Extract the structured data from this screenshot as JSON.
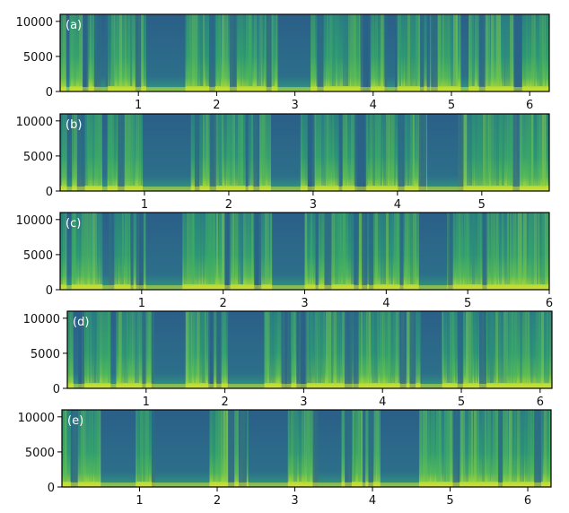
{
  "figure": {
    "description_panels": [
      "(a)",
      "(b)",
      "(c)",
      "(d)",
      "(e)"
    ]
  },
  "chart_data": [
    {
      "type": "heatmap",
      "panel_label": "(a)",
      "xlim": [
        0,
        6.25
      ],
      "ylim": [
        0,
        11000
      ],
      "x_ticks": [
        1,
        2,
        3,
        4,
        5,
        6
      ],
      "y_ticks": [
        0,
        5000,
        10000
      ],
      "x_tick_labels": [
        "1",
        "2",
        "3",
        "4",
        "5",
        "6"
      ],
      "y_tick_labels": [
        "0",
        "5000",
        "10000"
      ],
      "colormap": "viridis",
      "silence_segments": [
        [
          0.08,
          0.12
        ],
        [
          0.52,
          0.58
        ],
        [
          1.1,
          1.6
        ],
        [
          2.78,
          3.2
        ],
        [
          4.18,
          4.28
        ],
        [
          5.12,
          5.22
        ]
      ],
      "grid": false
    },
    {
      "type": "heatmap",
      "panel_label": "(b)",
      "xlim": [
        0,
        5.8
      ],
      "ylim": [
        0,
        11000
      ],
      "x_ticks": [
        1,
        2,
        3,
        4,
        5
      ],
      "y_ticks": [
        0,
        5000,
        10000
      ],
      "x_tick_labels": [
        "1",
        "2",
        "3",
        "4",
        "5"
      ],
      "y_tick_labels": [
        "0",
        "5000",
        "10000"
      ],
      "colormap": "viridis",
      "silence_segments": [
        [
          0.08,
          0.14
        ],
        [
          0.5,
          0.56
        ],
        [
          0.98,
          1.55
        ],
        [
          2.5,
          2.85
        ],
        [
          4.35,
          4.72
        ]
      ],
      "grid": false
    },
    {
      "type": "heatmap",
      "panel_label": "(c)",
      "xlim": [
        0,
        6.0
      ],
      "ylim": [
        0,
        11000
      ],
      "x_ticks": [
        1,
        2,
        3,
        4,
        5,
        6
      ],
      "y_ticks": [
        0,
        5000,
        10000
      ],
      "x_tick_labels": [
        "1",
        "2",
        "3",
        "4",
        "5",
        "6"
      ],
      "y_tick_labels": [
        "0",
        "5000",
        "10000"
      ],
      "colormap": "viridis",
      "silence_segments": [
        [
          0.08,
          0.14
        ],
        [
          0.52,
          0.6
        ],
        [
          1.05,
          1.5
        ],
        [
          2.6,
          3.0
        ],
        [
          4.4,
          4.75
        ]
      ],
      "grid": false
    },
    {
      "type": "heatmap",
      "panel_label": "(d)",
      "xlim": [
        0,
        6.15
      ],
      "ylim": [
        0,
        11000
      ],
      "x_ticks": [
        1,
        2,
        3,
        4,
        5,
        6
      ],
      "y_ticks": [
        0,
        5000,
        10000
      ],
      "x_tick_labels": [
        "1",
        "2",
        "3",
        "4",
        "5",
        "6"
      ],
      "y_tick_labels": [
        "0",
        "5000",
        "10000"
      ],
      "colormap": "viridis",
      "silence_segments": [
        [
          0.08,
          0.14
        ],
        [
          0.55,
          0.62
        ],
        [
          1.1,
          1.5
        ],
        [
          2.05,
          2.5
        ],
        [
          4.5,
          4.75
        ]
      ],
      "grid": false
    },
    {
      "type": "heatmap",
      "panel_label": "(e)",
      "xlim": [
        0,
        6.3
      ],
      "ylim": [
        0,
        11000
      ],
      "x_ticks": [
        1,
        2,
        3,
        4,
        5,
        6
      ],
      "y_ticks": [
        0,
        5000,
        10000
      ],
      "x_tick_labels": [
        "1",
        "2",
        "3",
        "4",
        "5",
        "6"
      ],
      "y_tick_labels": [
        "0",
        "5000",
        "10000"
      ],
      "colormap": "viridis",
      "silence_segments": [
        [
          0.5,
          0.95
        ],
        [
          1.2,
          1.9
        ],
        [
          2.4,
          2.9
        ],
        [
          3.3,
          3.6
        ],
        [
          4.1,
          4.6
        ]
      ],
      "grid": false
    }
  ]
}
